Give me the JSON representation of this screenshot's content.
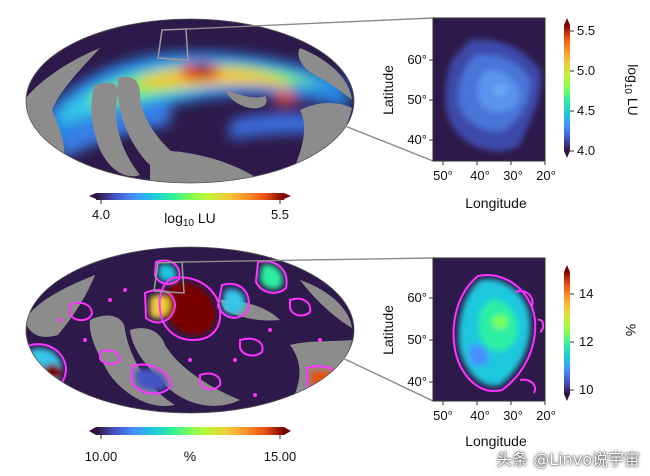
{
  "panel_top": {
    "colorbar": {
      "min_label": "4.0",
      "max_label": "5.5",
      "label_main": "log",
      "label_sub": "10",
      "label_unit": " LU"
    },
    "inset": {
      "xlabel": "Longitude",
      "ylabel": "Latitude",
      "xticks": [
        "50°",
        "40°",
        "30°",
        "20°"
      ],
      "yticks": [
        "60°",
        "50°",
        "40°"
      ],
      "cbar_ticks": [
        "5.5",
        "5.0",
        "4.5",
        "4.0"
      ],
      "cbar_label_main": "log",
      "cbar_label_sub": "10",
      "cbar_label_unit": " LU"
    }
  },
  "panel_bottom": {
    "colorbar": {
      "min_label": "10.00",
      "max_label": "15.00",
      "label": "%"
    },
    "inset": {
      "xlabel": "Longitude",
      "ylabel": "Latitude",
      "xticks": [
        "50°",
        "40°",
        "30°",
        "20°"
      ],
      "yticks": [
        "60°",
        "50°",
        "40°"
      ],
      "cbar_ticks": [
        "14",
        "12",
        "10"
      ],
      "cbar_label": "%"
    }
  },
  "colors": {
    "background_dark": "#2d1a4a",
    "masked_gray": "#8c8c8c",
    "contour_magenta": "#ff33ff",
    "colormap": [
      "#30123b",
      "#4662d7",
      "#36aaf9",
      "#1ae4b6",
      "#72fe5e",
      "#c8ef34",
      "#faba39",
      "#f66b19",
      "#ca2a04",
      "#7a0403"
    ]
  },
  "watermark": "头条 @Linvo说宇宙"
}
